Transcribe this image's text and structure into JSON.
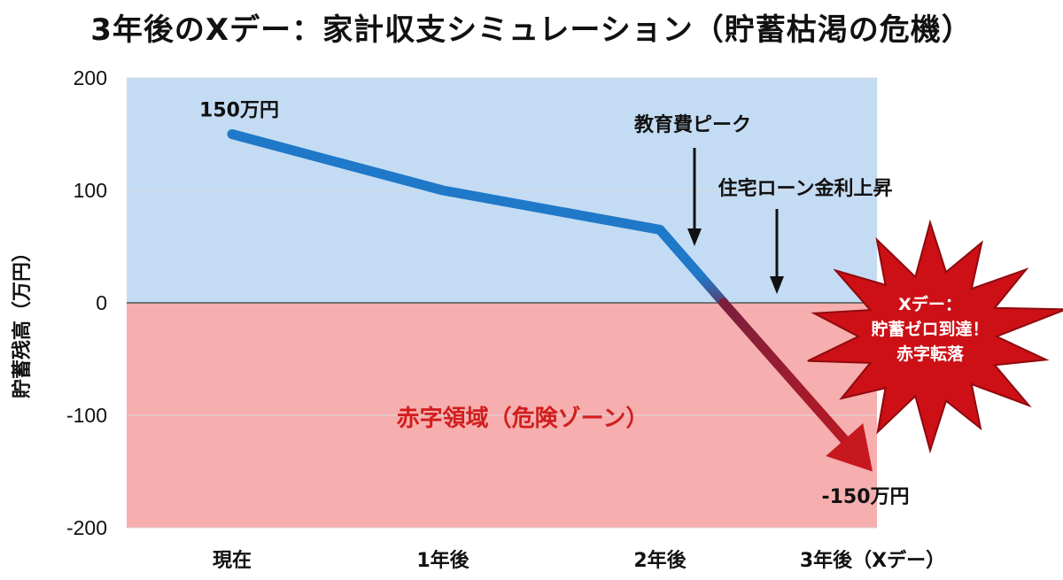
{
  "chart_data": {
    "type": "line",
    "title": "3年後のXデー：家計収支シミュレーション（貯蓄枯渇の危機）",
    "ylabel": "貯蓄残高（万円）",
    "xlabel": "",
    "categories": [
      "現在",
      "1年後",
      "2年後",
      "3年後（Xデー）"
    ],
    "ylim": [
      -200,
      200
    ],
    "yticks": [
      "200",
      "100",
      "0",
      "-100",
      "-200"
    ],
    "series": [
      {
        "x": [
          0,
          1,
          2,
          2.3,
          3
        ],
        "values": [
          150,
          100,
          65,
          0,
          -150
        ]
      }
    ],
    "data_labels": {
      "start": "150万円",
      "end": "-150万円"
    },
    "annotations": {
      "education_peak": "教育費ピーク",
      "interest_rise": "住宅ローン金利上昇",
      "deficit_zone": "赤字領域（危険ゾーン）",
      "xday_burst": [
        "Xデー：",
        "貯蓄ゼロ到達！",
        "赤字転落"
      ]
    },
    "colors": {
      "positive_bg": "#c3dcf4",
      "negative_bg": "#f6aeae",
      "line_blue": "#1f78c8",
      "line_dark": "#7a1f3d",
      "arrow_red": "#c6181e",
      "burst_red": "#cc1016",
      "deficit_text": "#d21e1e"
    },
    "grid": true
  }
}
